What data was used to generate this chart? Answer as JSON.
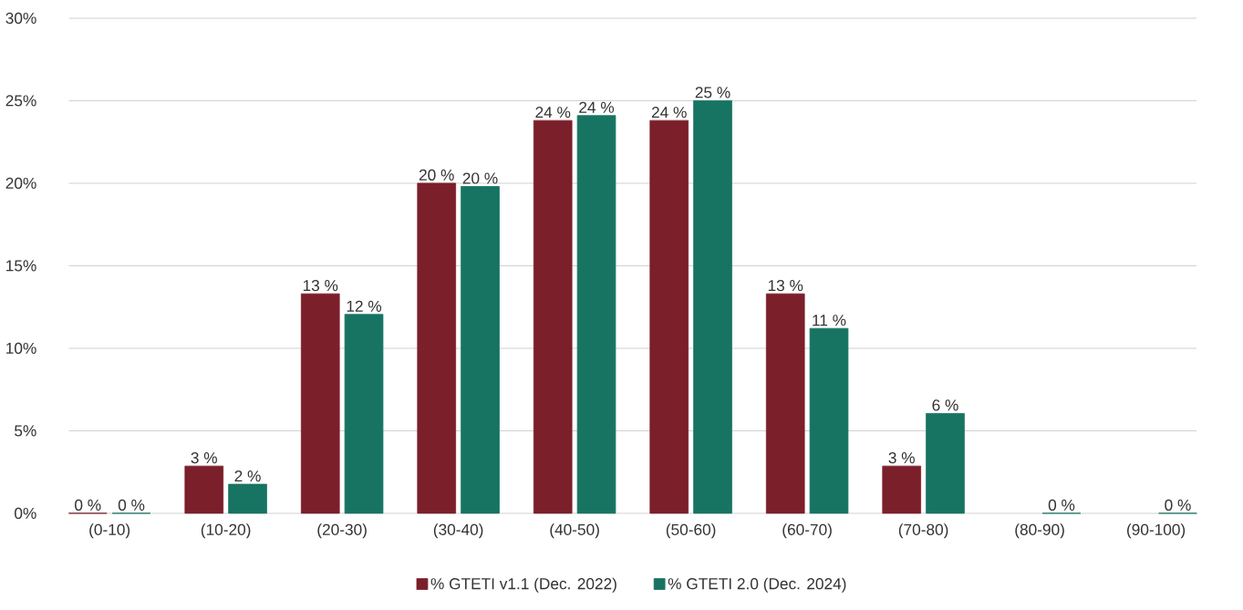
{
  "chart_data": {
    "type": "bar",
    "categories": [
      "(0-10)",
      "(10-20)",
      "(20-30)",
      "(30-40)",
      "(40-50)",
      "(50-60)",
      "(60-70)",
      "(70-80)",
      "(80-90)",
      "(90-100)"
    ],
    "series": [
      {
        "name": "% GTETI v1.1 (Dec. 2022)",
        "color": "#7b1f2a",
        "values": [
          0,
          2.86,
          13.3,
          20.0,
          23.8,
          23.8,
          13.3,
          2.86,
          null,
          null
        ],
        "value_labels": [
          "0 %",
          "3 %",
          "13 %",
          "20 %",
          "24 %",
          "24 %",
          "13 %",
          "3 %",
          null,
          null
        ]
      },
      {
        "name": "% GTETI 2.0 (Dec. 2024)",
        "color": "#177462",
        "values": [
          0,
          1.76,
          12.05,
          19.8,
          24.1,
          25.0,
          11.2,
          6.05,
          0,
          0
        ],
        "value_labels": [
          "0 %",
          "2 %",
          "12 %",
          "20 %",
          "24 %",
          "25 %",
          "11 %",
          "6 %",
          "0 %",
          "0 %"
        ]
      }
    ],
    "ylim": [
      0,
      30
    ],
    "yticks": [
      {
        "value": 0,
        "label": "0%"
      },
      {
        "value": 5,
        "label": "5%"
      },
      {
        "value": 10,
        "label": "10%"
      },
      {
        "value": 15,
        "label": "15%"
      },
      {
        "value": 20,
        "label": "20%"
      },
      {
        "value": 25,
        "label": "25%"
      },
      {
        "value": 30,
        "label": "30%"
      }
    ],
    "grid": "y",
    "legend": "bottom"
  }
}
